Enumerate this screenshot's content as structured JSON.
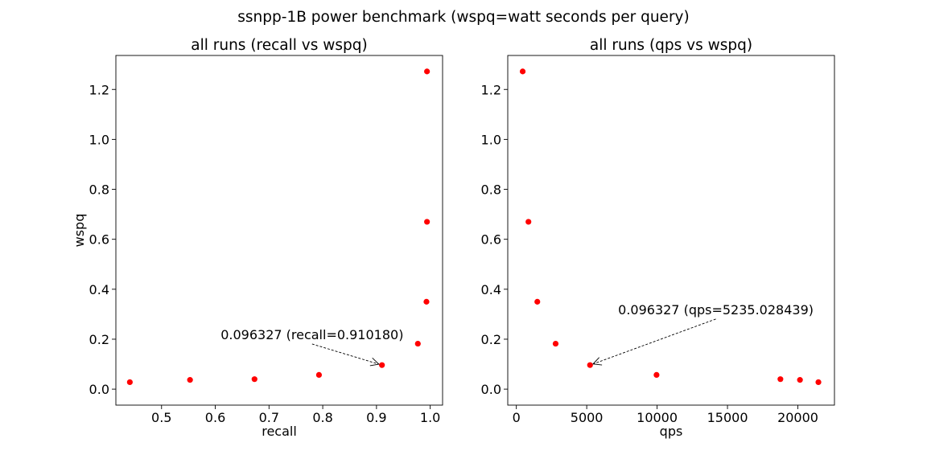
{
  "suptitle": "ssnpp-1B power benchmark (wspq=watt seconds per query)",
  "chart_data": [
    {
      "type": "scatter",
      "title": "all runs (recall vs wspq)",
      "xlabel": "recall",
      "ylabel": "wspq",
      "xlim": [
        0.415,
        1.023
      ],
      "ylim": [
        -0.064,
        1.336
      ],
      "xticks": [
        0.5,
        0.6,
        0.7,
        0.8,
        0.9,
        1.0
      ],
      "xtick_labels": [
        "0.5",
        "0.6",
        "0.7",
        "0.8",
        "0.9",
        "1.0"
      ],
      "yticks": [
        0.0,
        0.2,
        0.4,
        0.6,
        0.8,
        1.0,
        1.2
      ],
      "ytick_labels": [
        "0.0",
        "0.2",
        "0.4",
        "0.6",
        "0.8",
        "1.0",
        "1.2"
      ],
      "marker_color": "#ff0000",
      "grid": false,
      "points": [
        {
          "x": 0.441,
          "y": 0.028
        },
        {
          "x": 0.553,
          "y": 0.037
        },
        {
          "x": 0.673,
          "y": 0.04
        },
        {
          "x": 0.793,
          "y": 0.057
        },
        {
          "x": 0.91018,
          "y": 0.096327
        },
        {
          "x": 0.977,
          "y": 0.182
        },
        {
          "x": 0.993,
          "y": 0.35
        },
        {
          "x": 0.994,
          "y": 0.67
        },
        {
          "x": 0.994,
          "y": 1.272
        }
      ],
      "annotation": {
        "text": "0.096327 (recall=0.910180)",
        "point": {
          "x": 0.91018,
          "y": 0.096327
        },
        "text_at": {
          "x": 0.61,
          "y": 0.2
        }
      }
    },
    {
      "type": "scatter",
      "title": "all runs (qps vs wspq)",
      "xlabel": "qps",
      "ylabel": "",
      "xlim": [
        -610,
        22600
      ],
      "ylim": [
        -0.064,
        1.336
      ],
      "xticks": [
        0,
        5000,
        10000,
        15000,
        20000
      ],
      "xtick_labels": [
        "0",
        "5000",
        "10000",
        "15000",
        "20000"
      ],
      "yticks": [
        0.0,
        0.2,
        0.4,
        0.6,
        0.8,
        1.0,
        1.2
      ],
      "ytick_labels": [
        "0.0",
        "0.2",
        "0.4",
        "0.6",
        "0.8",
        "1.0",
        "1.2"
      ],
      "marker_color": "#ff0000",
      "grid": false,
      "points": [
        {
          "x": 450,
          "y": 1.272
        },
        {
          "x": 860,
          "y": 0.67
        },
        {
          "x": 1490,
          "y": 0.35
        },
        {
          "x": 2790,
          "y": 0.182
        },
        {
          "x": 5235.028439,
          "y": 0.096327
        },
        {
          "x": 9960,
          "y": 0.057
        },
        {
          "x": 18760,
          "y": 0.04
        },
        {
          "x": 20150,
          "y": 0.037
        },
        {
          "x": 21460,
          "y": 0.028
        }
      ],
      "annotation": {
        "text": "0.096327 (qps=5235.028439)",
        "point": {
          "x": 5235.028439,
          "y": 0.096327
        },
        "text_at": {
          "x": 7230,
          "y": 0.3
        }
      }
    }
  ]
}
